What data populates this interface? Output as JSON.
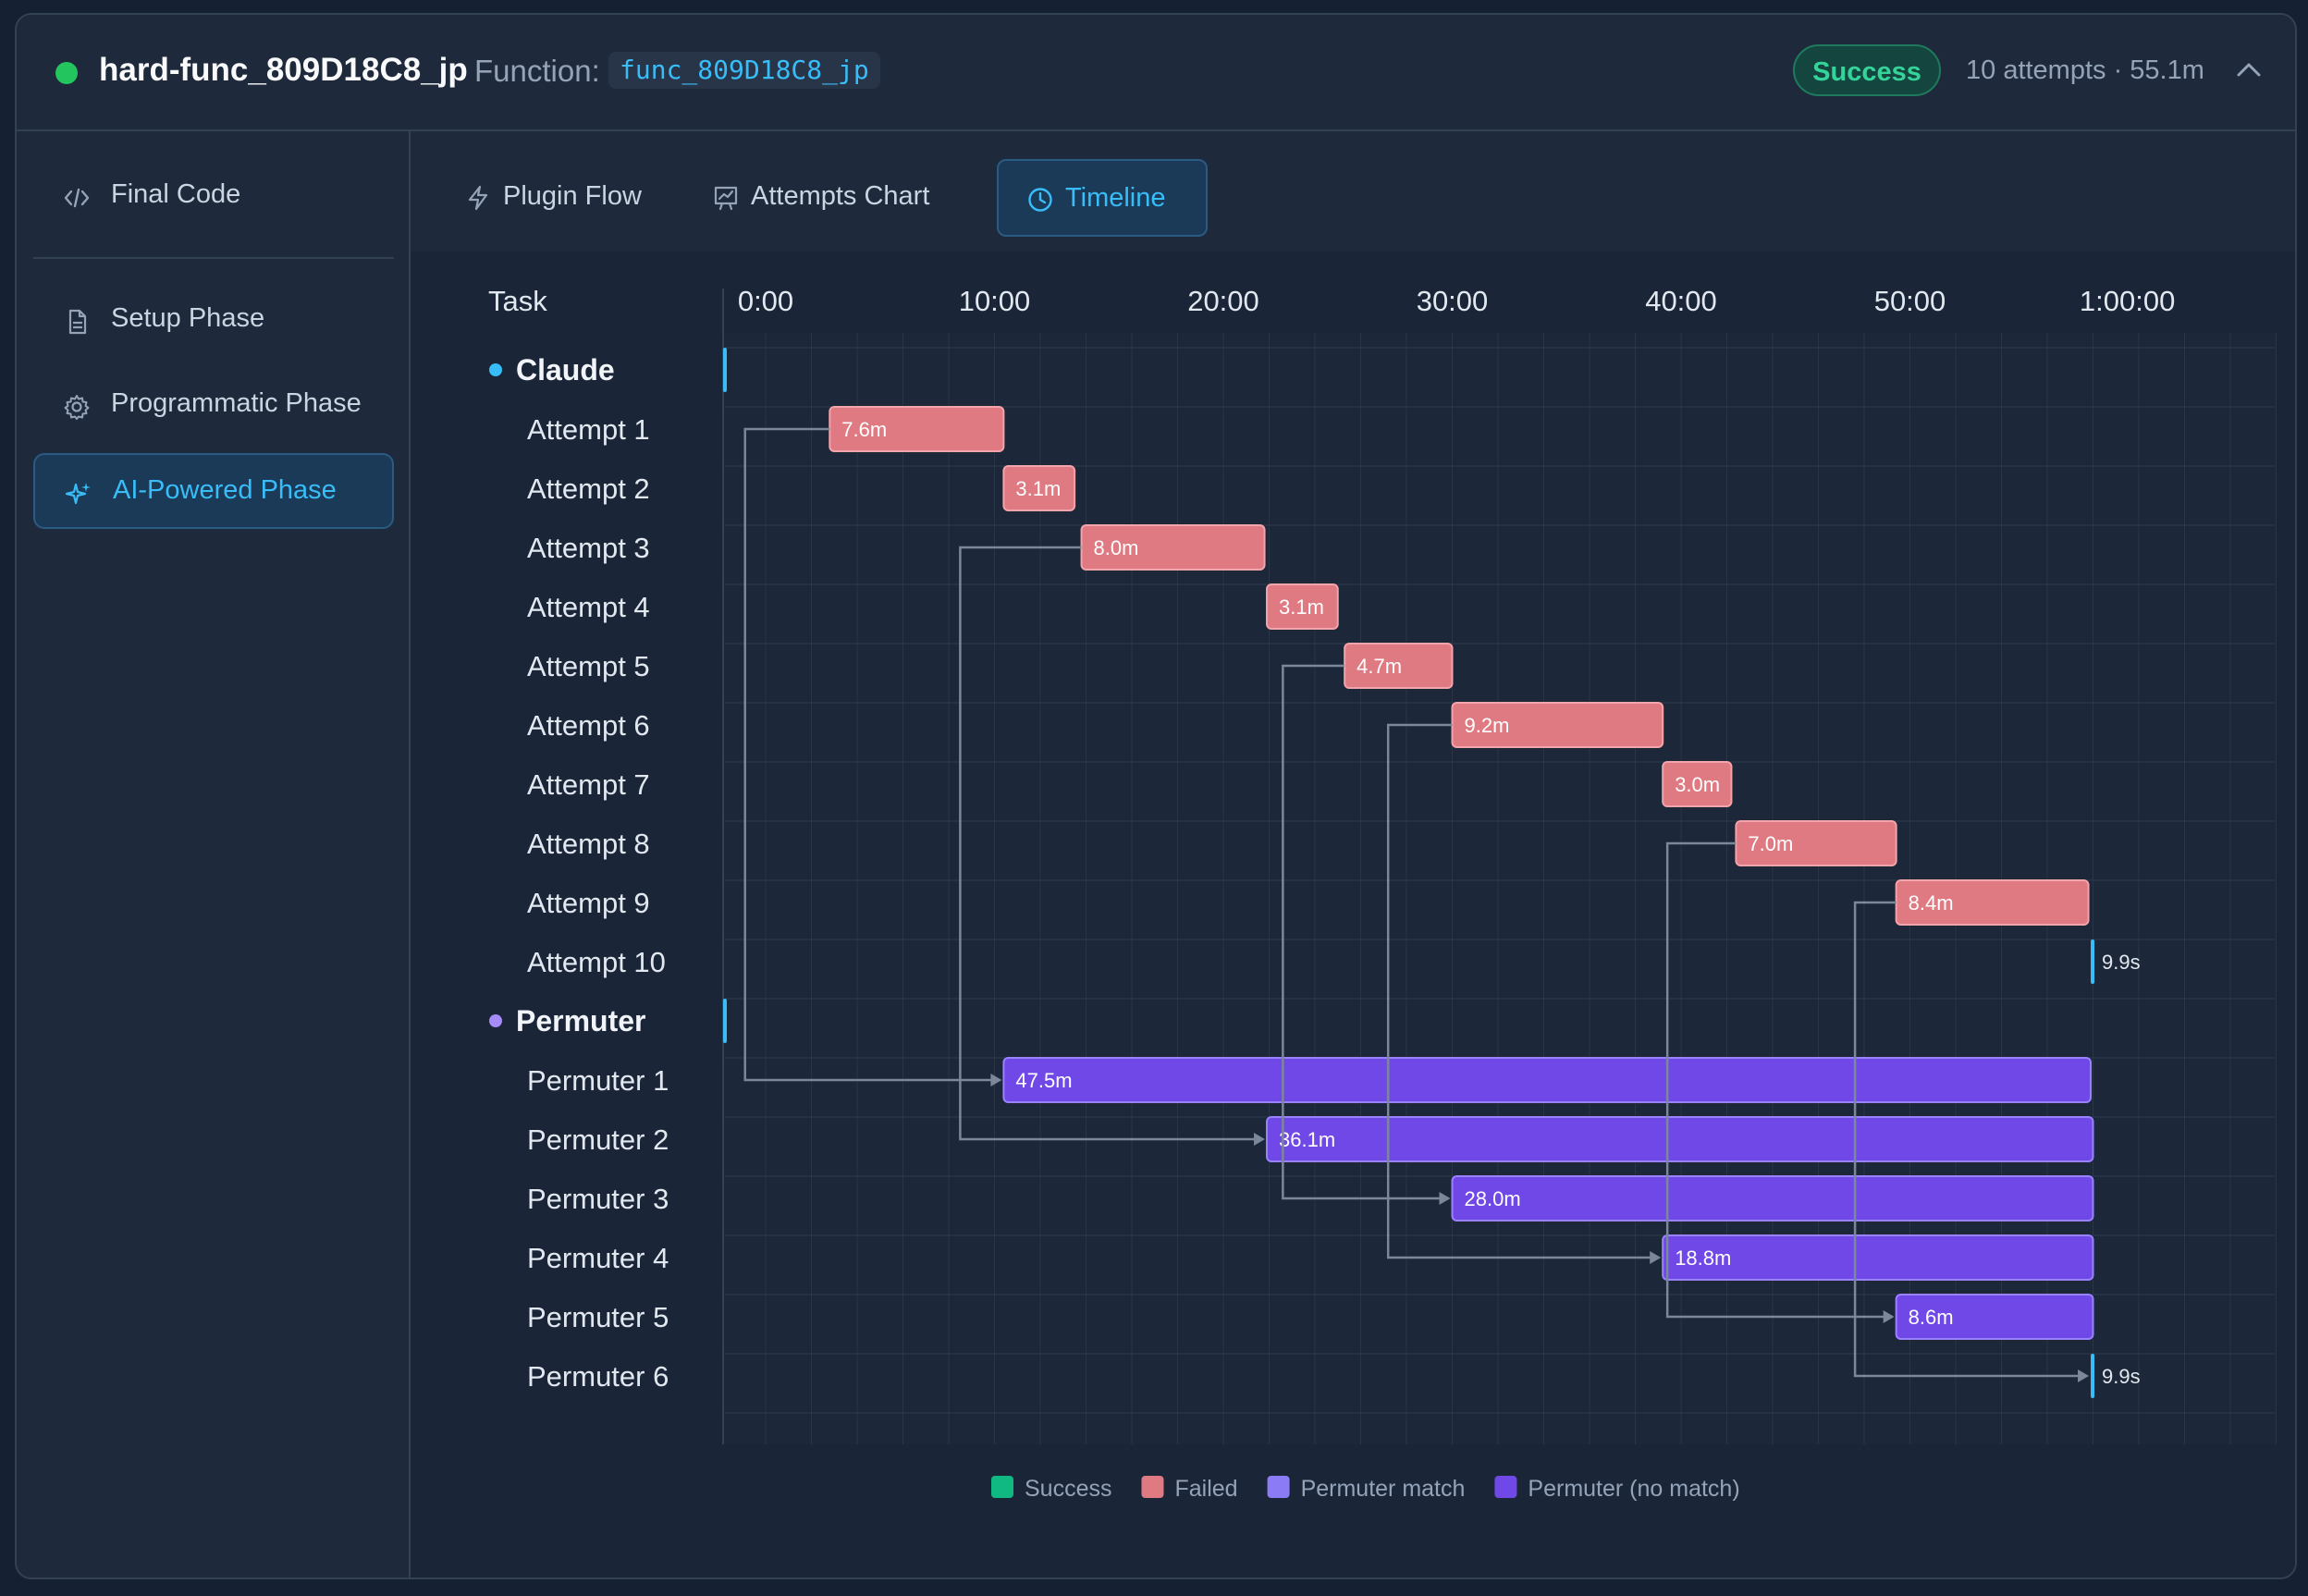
{
  "header": {
    "title": "hard-func_809D18C8_jp",
    "function_label": "Function:",
    "function_name": "func_809D18C8_jp",
    "status": "Success",
    "meta": "10 attempts · 55.1m"
  },
  "sidebar": {
    "items": [
      {
        "label": "Final Code",
        "icon": "code-icon"
      },
      {
        "label": "Setup Phase",
        "icon": "document-icon"
      },
      {
        "label": "Programmatic Phase",
        "icon": "gear-icon"
      },
      {
        "label": "AI-Powered Phase",
        "icon": "sparkles-icon",
        "active": true
      }
    ]
  },
  "tabs": [
    {
      "label": "Plugin Flow",
      "icon": "lightning-icon"
    },
    {
      "label": "Attempts Chart",
      "icon": "chart-icon"
    },
    {
      "label": "Timeline",
      "icon": "clock-icon",
      "active": true
    }
  ],
  "colors": {
    "success": "#10b981",
    "failed": "#e07a82",
    "permuter_match": "#8b7cf6",
    "permuter_no_match": "#7048e8",
    "claude_group": "#38bdf8",
    "permuter_group": "#a78bfa"
  },
  "chart_data": {
    "type": "gantt",
    "task_header": "Task",
    "x_ticks": [
      "0:00",
      "10:00",
      "20:00",
      "30:00",
      "40:00",
      "50:00",
      "1:00:00"
    ],
    "x_range_min": [
      0,
      60
    ],
    "groups": [
      {
        "name": "Claude",
        "rows": [
          {
            "label": "Attempt 1",
            "start": 2.8,
            "duration": 7.6,
            "text": "7.6m",
            "status": "failed"
          },
          {
            "label": "Attempt 2",
            "start": 10.4,
            "duration": 3.1,
            "text": "3.1m",
            "status": "failed"
          },
          {
            "label": "Attempt 3",
            "start": 13.8,
            "duration": 8.0,
            "text": "8.0m",
            "status": "failed"
          },
          {
            "label": "Attempt 4",
            "start": 21.9,
            "duration": 3.1,
            "text": "3.1m",
            "status": "failed"
          },
          {
            "label": "Attempt 5",
            "start": 25.3,
            "duration": 4.7,
            "text": "4.7m",
            "status": "failed"
          },
          {
            "label": "Attempt 6",
            "start": 30.0,
            "duration": 9.2,
            "text": "9.2m",
            "status": "failed"
          },
          {
            "label": "Attempt 7",
            "start": 39.2,
            "duration": 3.0,
            "text": "3.0m",
            "status": "failed"
          },
          {
            "label": "Attempt 8",
            "start": 42.4,
            "duration": 7.0,
            "text": "7.0m",
            "status": "failed"
          },
          {
            "label": "Attempt 9",
            "start": 49.4,
            "duration": 8.4,
            "text": "8.4m",
            "status": "failed"
          },
          {
            "label": "Attempt 10",
            "start": 57.9,
            "duration": 0.165,
            "text": "9.9s",
            "status": "success"
          }
        ]
      },
      {
        "name": "Permuter",
        "rows": [
          {
            "label": "Permuter 1",
            "start": 10.4,
            "duration": 47.5,
            "text": "47.5m",
            "status": "permuter_no_match",
            "from": 1
          },
          {
            "label": "Permuter 2",
            "start": 21.9,
            "duration": 36.1,
            "text": "36.1m",
            "status": "permuter_no_match",
            "from": 3
          },
          {
            "label": "Permuter 3",
            "start": 30.0,
            "duration": 28.0,
            "text": "28.0m",
            "status": "permuter_no_match",
            "from": 5
          },
          {
            "label": "Permuter 4",
            "start": 39.2,
            "duration": 18.8,
            "text": "18.8m",
            "status": "permuter_no_match",
            "from": 6
          },
          {
            "label": "Permuter 5",
            "start": 49.4,
            "duration": 8.6,
            "text": "8.6m",
            "status": "permuter_no_match",
            "from": 8
          },
          {
            "label": "Permuter 6",
            "start": 57.9,
            "duration": 0.165,
            "text": "9.9s",
            "status": "permuter_no_match",
            "from": 9
          }
        ]
      }
    ],
    "legend": [
      {
        "label": "Success",
        "color": "#10b981"
      },
      {
        "label": "Failed",
        "color": "#e07a82"
      },
      {
        "label": "Permuter match",
        "color": "#8b7cf6"
      },
      {
        "label": "Permuter (no match)",
        "color": "#7048e8"
      }
    ],
    "grid": true
  }
}
